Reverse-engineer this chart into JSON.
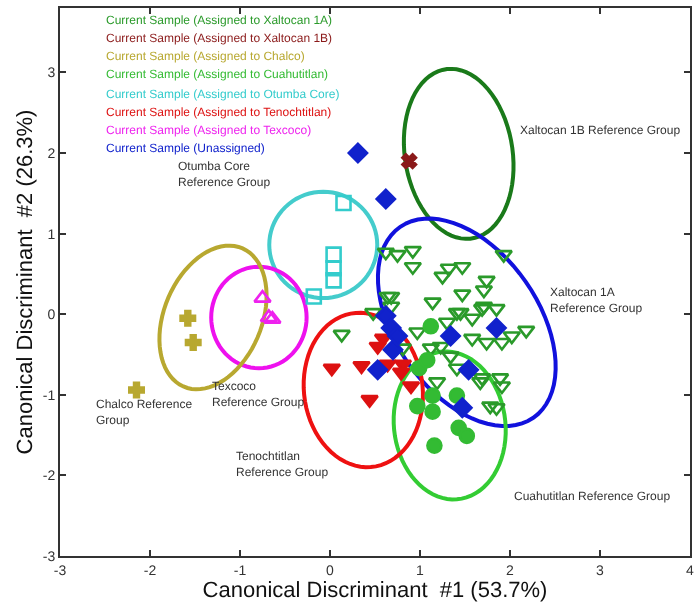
{
  "chart_data": {
    "type": "scatter",
    "xlabel": "Canonical Discriminant  #1 (53.7%)",
    "ylabel": "Canonical Discriminant  #2 (26.3%)",
    "xlim": [
      -3,
      4
    ],
    "ylim": [
      -3,
      3.8
    ],
    "xticks": [
      -3,
      -2,
      -1,
      0,
      1,
      2,
      3,
      4
    ],
    "yticks": [
      -3,
      -2,
      -1,
      0,
      1,
      2,
      3
    ],
    "grid": false,
    "legend": "top left",
    "series": [
      {
        "name": "Current Sample (Assigned to Xaltocan 1A)",
        "color": "#2a9a2a",
        "marker": "triangle",
        "x": [
          0.62,
          0.75,
          0.92,
          0.92,
          1.32,
          1.47,
          1.25,
          1.74,
          1.71,
          1.47,
          1.93,
          1.71,
          1.41,
          0.64,
          0.68,
          0.48,
          0.13,
          0.68,
          1.14,
          1.45,
          1.69,
          1.85,
          2.02,
          2.18,
          1.91,
          1.74,
          1.58,
          1.23,
          1.12,
          1.34,
          1.41,
          1.69,
          1.89,
          1.91,
          1.67,
          1.19,
          1.78,
          1.85,
          0.97,
          0.81,
          1.58,
          1.3
        ],
        "values": [
          0.77,
          0.74,
          0.79,
          0.59,
          0.57,
          0.59,
          0.47,
          0.42,
          0.3,
          0.25,
          0.74,
          0.1,
          0.02,
          0.22,
          0.22,
          0.02,
          -0.25,
          0.1,
          0.15,
          0.02,
          0.07,
          0.07,
          -0.27,
          -0.2,
          -0.35,
          -0.35,
          -0.3,
          -0.4,
          -0.42,
          -0.52,
          -0.67,
          -0.79,
          -0.79,
          -0.89,
          -0.84,
          -0.84,
          -1.14,
          -1.16,
          -0.22,
          -0.42,
          -0.05,
          -0.1
        ]
      },
      {
        "name": "Current Sample (Assigned to Xaltocan 1B)",
        "color": "#8b1a1a",
        "marker": "cross",
        "x": [
          0.88
        ],
        "values": [
          1.9
        ]
      },
      {
        "name": "Current Sample (Assigned to Chalco)",
        "color": "#b8a830",
        "marker": "cross",
        "x": [
          -1.58,
          -1.52,
          -2.15
        ],
        "values": [
          -0.05,
          -0.35,
          -0.94
        ]
      },
      {
        "name": "Current Sample (Assigned to Cuahutitlan)",
        "color": "#33bb33",
        "marker": "circle",
        "x": [
          0.99,
          1.08,
          1.14,
          0.97,
          1.14,
          1.41,
          1.43,
          1.52,
          1.16,
          1.12
        ],
        "values": [
          -0.67,
          -0.57,
          -1.01,
          -1.14,
          -1.21,
          -1.01,
          -1.41,
          -1.51,
          -1.63,
          -0.15
        ]
      },
      {
        "name": "Current Sample (Assigned to Otumba Core)",
        "color": "#33cccc",
        "marker": "square",
        "x": [
          0.15,
          0.04,
          0.04,
          0.04,
          -0.18
        ],
        "values": [
          1.38,
          0.74,
          0.57,
          0.42,
          0.22
        ]
      },
      {
        "name": "Current Sample (Assigned to Tenochtitlan)",
        "color": "#dd1111",
        "marker": "triangle",
        "x": [
          0.02,
          0.35,
          0.44,
          0.53,
          0.59,
          0.64,
          0.81,
          0.79,
          0.9
        ],
        "values": [
          -0.67,
          -0.64,
          -1.06,
          -0.4,
          -0.3,
          -0.62,
          -0.62,
          -0.72,
          -0.89
        ]
      },
      {
        "name": "Current Sample (Assigned to Texcoco)",
        "color": "#ee22ee",
        "marker": "triangle",
        "x": [
          -0.75,
          -0.68,
          -0.64
        ],
        "values": [
          0.2,
          -0.04,
          -0.06
        ]
      },
      {
        "name": "Current Sample (Unassigned)",
        "color": "#1122cc",
        "marker": "diamond",
        "x": [
          0.31,
          0.62,
          0.53,
          0.62,
          0.7,
          1.34,
          1.85,
          1.54,
          1.47,
          0.68,
          0.75
        ],
        "values": [
          2.0,
          1.43,
          -0.69,
          -0.02,
          -0.44,
          -0.27,
          -0.17,
          -0.69,
          -1.16,
          -0.17,
          -0.27
        ]
      }
    ],
    "annotations": [
      "Xaltocan 1B Reference Group",
      "Xaltocan 1A\nReference Group",
      "Cuahutitlan Reference Group",
      "Tenochtitlan\nReference Group",
      "Texcoco\nReference Group",
      "Chalco Reference\nGroup",
      "Otumba Core\nReference Group"
    ]
  }
}
